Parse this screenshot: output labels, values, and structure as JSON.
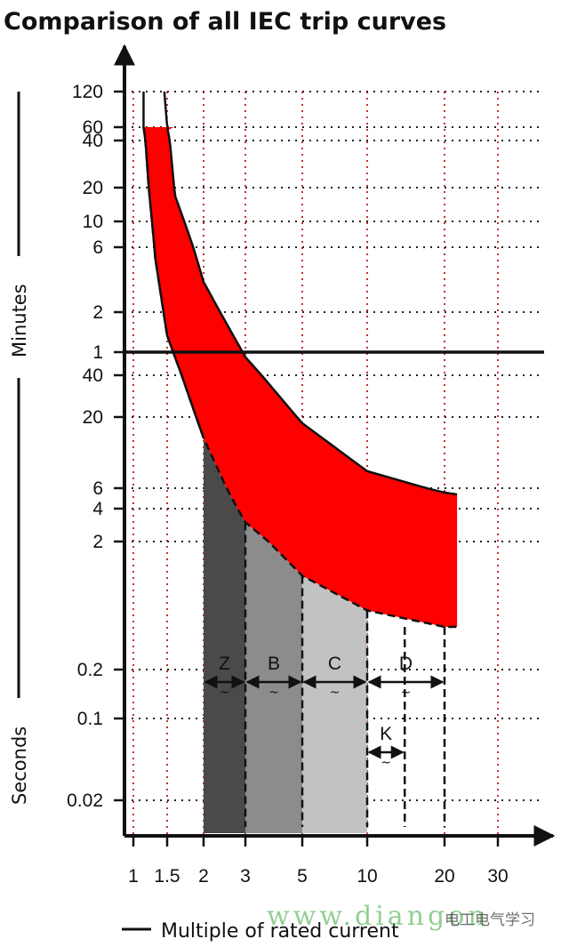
{
  "chart_data": {
    "type": "area",
    "title": "Comparison of all IEC trip curves",
    "xlabel": "Multiple of rated current",
    "ylabel_top": "Minutes",
    "ylabel_bottom": "Seconds",
    "x_scale": "log",
    "x_ticks": [
      {
        "value": 1,
        "label": "1"
      },
      {
        "value": 1.5,
        "label": "1.5"
      },
      {
        "value": 2,
        "label": "2"
      },
      {
        "value": 3,
        "label": "3"
      },
      {
        "value": 5,
        "label": "5"
      },
      {
        "value": 10,
        "label": "10"
      },
      {
        "value": 20,
        "label": "20"
      },
      {
        "value": 30,
        "label": "30"
      }
    ],
    "y_scale": "log",
    "y_ticks": [
      {
        "label": "120",
        "seconds": 7200
      },
      {
        "label": "60",
        "seconds": 3600
      },
      {
        "label": "40",
        "seconds": 2400
      },
      {
        "label": "20",
        "seconds": 1200
      },
      {
        "label": "10",
        "seconds": 600
      },
      {
        "label": "6",
        "seconds": 360
      },
      {
        "label": "2",
        "seconds": 120
      },
      {
        "label": "1",
        "seconds": 60
      },
      {
        "label": "40",
        "seconds": 40
      },
      {
        "label": "20",
        "seconds": 20
      },
      {
        "label": "6",
        "seconds": 6
      },
      {
        "label": "4",
        "seconds": 4
      },
      {
        "label": "2",
        "seconds": 2
      },
      {
        "label": "0.2",
        "seconds": 0.2
      },
      {
        "label": "0.1",
        "seconds": 0.1
      },
      {
        "label": "0.02",
        "seconds": 0.02
      }
    ],
    "thermal_band": {
      "color": "#ff0000",
      "plateau_seconds": 3600,
      "lower_curve": [
        [
          1.13,
          3600
        ],
        [
          1.3,
          300
        ],
        [
          1.5,
          80
        ],
        [
          2,
          14
        ],
        [
          3,
          3
        ],
        [
          5,
          1.1
        ],
        [
          10,
          0.6
        ],
        [
          20,
          0.45
        ],
        [
          22,
          0.45
        ]
      ],
      "upper_curve": [
        [
          1.45,
          7200
        ],
        [
          1.6,
          1000
        ],
        [
          2,
          200
        ],
        [
          3,
          55
        ],
        [
          5,
          18
        ],
        [
          10,
          8
        ],
        [
          20,
          5.5
        ],
        [
          22,
          5.3
        ]
      ]
    },
    "magnetic_bands": [
      {
        "name": "Z",
        "x_from": 2,
        "x_to": 3,
        "color": "#4a4a4a"
      },
      {
        "name": "B",
        "x_from": 3,
        "x_to": 5,
        "color": "#8c8c8c"
      },
      {
        "name": "C",
        "x_from": 5,
        "x_to": 10,
        "color": "#c2c2c2"
      },
      {
        "name": "D",
        "x_from": 10,
        "x_to": 20,
        "color": "#ffffff"
      },
      {
        "name": "K",
        "x_from": 10,
        "x_to": 14,
        "color": "#ffffff"
      }
    ],
    "annotations": [
      "~"
    ],
    "grid": true,
    "grid_color": "#b30000",
    "reference_line_seconds": 60,
    "watermark": {
      "text": "www.diangon",
      "text2": "电工电气学习"
    }
  }
}
